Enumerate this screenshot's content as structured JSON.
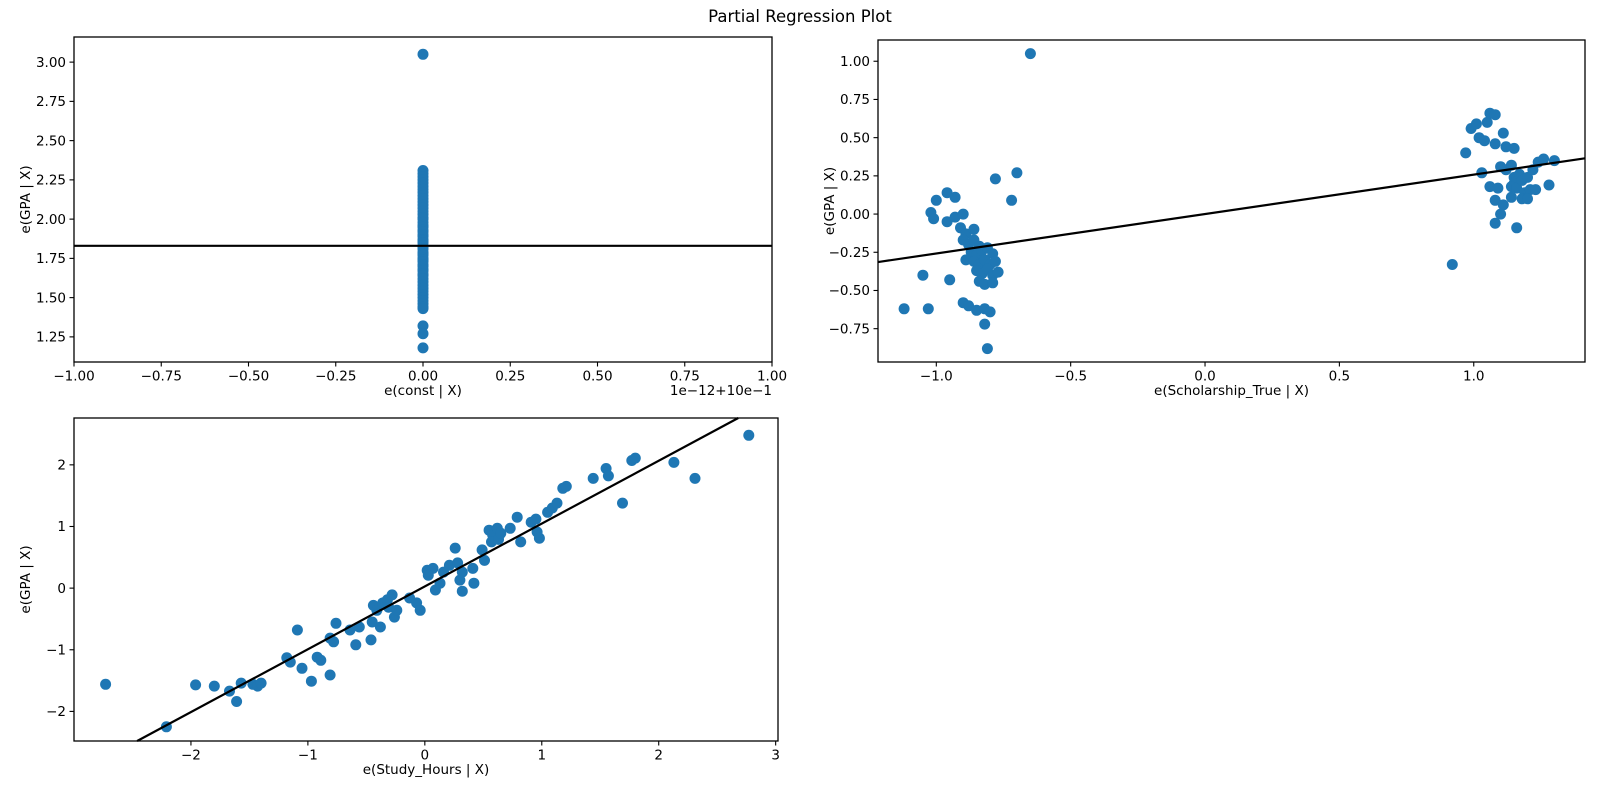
{
  "title": "Partial Regression Plot",
  "colors": {
    "marker": "#1f77b4",
    "fit_line": "#000000",
    "axis": "#000000"
  },
  "chart_data": [
    {
      "type": "scatter",
      "name": "const-partial",
      "xlabel": "e(const | X)",
      "ylabel": "e(GPA | X)",
      "x_axis_offset_text": "1e−12+10e−1",
      "xlim": [
        -1.0,
        1.0
      ],
      "ylim": [
        1.09,
        3.16
      ],
      "xtick_values": [
        -1.0,
        -0.75,
        -0.5,
        -0.25,
        0.0,
        0.25,
        0.5,
        0.75,
        1.0
      ],
      "xtick_labels": [
        "−1.00",
        "−0.75",
        "−0.50",
        "−0.25",
        "0.00",
        "0.25",
        "0.50",
        "0.75",
        "1.00"
      ],
      "ytick_values": [
        1.25,
        1.5,
        1.75,
        2.0,
        2.25,
        2.5,
        2.75,
        3.0
      ],
      "ytick_labels": [
        "1.25",
        "1.50",
        "1.75",
        "2.00",
        "2.25",
        "2.50",
        "2.75",
        "3.00"
      ],
      "fit_line": [
        [
          -1.0,
          1.83
        ],
        [
          1.0,
          1.83
        ]
      ],
      "points": [
        [
          0,
          3.05
        ],
        [
          0,
          2.31
        ],
        [
          0,
          2.29
        ],
        [
          0,
          2.27
        ],
        [
          0,
          2.25
        ],
        [
          0,
          2.23
        ],
        [
          0,
          2.21
        ],
        [
          0,
          2.19
        ],
        [
          0,
          2.17
        ],
        [
          0,
          2.15
        ],
        [
          0,
          2.13
        ],
        [
          0,
          2.11
        ],
        [
          0,
          2.09
        ],
        [
          0,
          2.07
        ],
        [
          0,
          2.05
        ],
        [
          0,
          2.03
        ],
        [
          0,
          2.01
        ],
        [
          0,
          2.0
        ],
        [
          0,
          1.98
        ],
        [
          0,
          1.96
        ],
        [
          0,
          1.95
        ],
        [
          0,
          1.93
        ],
        [
          0,
          1.92
        ],
        [
          0,
          1.9
        ],
        [
          0,
          1.89
        ],
        [
          0,
          1.87
        ],
        [
          0,
          1.86
        ],
        [
          0,
          1.85
        ],
        [
          0,
          1.83
        ],
        [
          0,
          1.82
        ],
        [
          0,
          1.81
        ],
        [
          0,
          1.79
        ],
        [
          0,
          1.78
        ],
        [
          0,
          1.77
        ],
        [
          0,
          1.75
        ],
        [
          0,
          1.74
        ],
        [
          0,
          1.73
        ],
        [
          0,
          1.71
        ],
        [
          0,
          1.7
        ],
        [
          0,
          1.68
        ],
        [
          0,
          1.67
        ],
        [
          0,
          1.65
        ],
        [
          0,
          1.64
        ],
        [
          0,
          1.62
        ],
        [
          0,
          1.6
        ],
        [
          0,
          1.58
        ],
        [
          0,
          1.56
        ],
        [
          0,
          1.54
        ],
        [
          0,
          1.52
        ],
        [
          0,
          1.5
        ],
        [
          0,
          1.48
        ],
        [
          0,
          1.46
        ],
        [
          0,
          1.44
        ],
        [
          0,
          1.43
        ],
        [
          0,
          1.32
        ],
        [
          0,
          1.27
        ],
        [
          0,
          1.18
        ]
      ]
    },
    {
      "type": "scatter",
      "name": "scholarship-partial",
      "xlabel": "e(Scholarship_True | X)",
      "ylabel": "e(GPA | X)",
      "x_axis_offset_text": "",
      "xlim": [
        -1.217,
        1.414
      ],
      "ylim": [
        -0.968,
        1.139
      ],
      "xtick_values": [
        -1.0,
        -0.5,
        0.0,
        0.5,
        1.0
      ],
      "xtick_labels": [
        "−1.0",
        "−0.5",
        "0.0",
        "0.5",
        "1.0"
      ],
      "ytick_values": [
        -0.75,
        -0.5,
        -0.25,
        0.0,
        0.25,
        0.5,
        0.75,
        1.0
      ],
      "ytick_labels": [
        "−0.75",
        "−0.50",
        "−0.25",
        "0.00",
        "0.25",
        "0.50",
        "0.75",
        "1.00"
      ],
      "fit_line": [
        [
          -1.217,
          -0.314
        ],
        [
          1.414,
          0.365
        ]
      ],
      "points": [
        [
          -0.65,
          1.05
        ],
        [
          -0.7,
          0.27
        ],
        [
          -0.78,
          0.23
        ],
        [
          -0.72,
          0.09
        ],
        [
          -1.0,
          0.09
        ],
        [
          -0.96,
          0.14
        ],
        [
          -0.93,
          0.11
        ],
        [
          -1.02,
          0.01
        ],
        [
          -1.01,
          -0.03
        ],
        [
          -0.96,
          -0.05
        ],
        [
          -0.93,
          -0.02
        ],
        [
          -0.9,
          0.0
        ],
        [
          -0.91,
          -0.09
        ],
        [
          -0.89,
          -0.13
        ],
        [
          -0.86,
          -0.1
        ],
        [
          -0.9,
          -0.17
        ],
        [
          -0.88,
          -0.2
        ],
        [
          -0.86,
          -0.17
        ],
        [
          -0.84,
          -0.21
        ],
        [
          -0.87,
          -0.25
        ],
        [
          -0.85,
          -0.27
        ],
        [
          -0.83,
          -0.24
        ],
        [
          -0.81,
          -0.22
        ],
        [
          -0.79,
          -0.26
        ],
        [
          -0.89,
          -0.3
        ],
        [
          -0.86,
          -0.31
        ],
        [
          -0.84,
          -0.33
        ],
        [
          -0.82,
          -0.3
        ],
        [
          -0.8,
          -0.33
        ],
        [
          -0.78,
          -0.31
        ],
        [
          -0.85,
          -0.37
        ],
        [
          -0.83,
          -0.39
        ],
        [
          -0.81,
          -0.36
        ],
        [
          -0.79,
          -0.4
        ],
        [
          -0.77,
          -0.38
        ],
        [
          -1.05,
          -0.4
        ],
        [
          -0.95,
          -0.43
        ],
        [
          -0.84,
          -0.44
        ],
        [
          -0.82,
          -0.46
        ],
        [
          -0.79,
          -0.45
        ],
        [
          -1.12,
          -0.62
        ],
        [
          -1.03,
          -0.62
        ],
        [
          -0.9,
          -0.58
        ],
        [
          -0.88,
          -0.6
        ],
        [
          -0.85,
          -0.63
        ],
        [
          -0.82,
          -0.62
        ],
        [
          -0.8,
          -0.64
        ],
        [
          -0.82,
          -0.72
        ],
        [
          -0.81,
          -0.88
        ],
        [
          0.92,
          -0.33
        ],
        [
          0.97,
          0.4
        ],
        [
          0.99,
          0.56
        ],
        [
          1.01,
          0.59
        ],
        [
          1.05,
          0.6
        ],
        [
          1.06,
          0.66
        ],
        [
          1.08,
          0.65
        ],
        [
          1.02,
          0.5
        ],
        [
          1.04,
          0.48
        ],
        [
          1.08,
          0.46
        ],
        [
          1.11,
          0.53
        ],
        [
          1.12,
          0.44
        ],
        [
          1.15,
          0.43
        ],
        [
          1.03,
          0.27
        ],
        [
          1.06,
          0.18
        ],
        [
          1.09,
          0.17
        ],
        [
          1.1,
          0.31
        ],
        [
          1.12,
          0.29
        ],
        [
          1.14,
          0.32
        ],
        [
          1.15,
          0.24
        ],
        [
          1.15,
          0.2
        ],
        [
          1.16,
          0.23
        ],
        [
          1.17,
          0.26
        ],
        [
          1.14,
          0.18
        ],
        [
          1.16,
          0.17
        ],
        [
          1.18,
          0.22
        ],
        [
          1.2,
          0.24
        ],
        [
          1.19,
          0.14
        ],
        [
          1.21,
          0.16
        ],
        [
          1.23,
          0.16
        ],
        [
          1.08,
          0.09
        ],
        [
          1.11,
          0.06
        ],
        [
          1.14,
          0.11
        ],
        [
          1.18,
          0.1
        ],
        [
          1.2,
          0.1
        ],
        [
          1.1,
          0.0
        ],
        [
          1.08,
          -0.06
        ],
        [
          1.16,
          -0.09
        ],
        [
          1.22,
          0.29
        ],
        [
          1.24,
          0.34
        ],
        [
          1.26,
          0.36
        ],
        [
          1.3,
          0.35
        ],
        [
          1.28,
          0.19
        ]
      ]
    },
    {
      "type": "scatter",
      "name": "study-hours-partial",
      "xlabel": "e(Study_Hours | X)",
      "ylabel": "e(GPA | X)",
      "x_axis_offset_text": "",
      "xlim": [
        -3.0,
        3.02
      ],
      "ylim": [
        -2.48,
        2.76
      ],
      "xtick_values": [
        -2,
        -1,
        0,
        1,
        2,
        3
      ],
      "xtick_labels": [
        "−2",
        "−1",
        "0",
        "1",
        "2",
        "3"
      ],
      "ytick_values": [
        -2,
        -1,
        0,
        1,
        2
      ],
      "ytick_labels": [
        "−2",
        "−1",
        "0",
        "1",
        "2"
      ],
      "fit_line": [
        [
          -2.46,
          -2.48
        ],
        [
          2.68,
          2.76
        ]
      ],
      "points": [
        [
          -2.73,
          -1.56
        ],
        [
          -2.21,
          -2.25
        ],
        [
          -1.96,
          -1.57
        ],
        [
          -1.8,
          -1.59
        ],
        [
          -1.67,
          -1.67
        ],
        [
          -1.61,
          -1.84
        ],
        [
          -1.57,
          -1.54
        ],
        [
          -1.47,
          -1.56
        ],
        [
          -1.43,
          -1.59
        ],
        [
          -1.4,
          -1.54
        ],
        [
          -1.18,
          -1.13
        ],
        [
          -1.15,
          -1.2
        ],
        [
          -1.09,
          -0.68
        ],
        [
          -1.05,
          -1.3
        ],
        [
          -0.97,
          -1.51
        ],
        [
          -0.92,
          -1.12
        ],
        [
          -0.89,
          -1.17
        ],
        [
          -0.81,
          -1.41
        ],
        [
          -0.76,
          -0.57
        ],
        [
          -0.78,
          -0.87
        ],
        [
          -0.81,
          -0.81
        ],
        [
          -0.64,
          -0.68
        ],
        [
          -0.59,
          -0.92
        ],
        [
          -0.56,
          -0.63
        ],
        [
          -0.46,
          -0.84
        ],
        [
          -0.45,
          -0.55
        ],
        [
          -0.44,
          -0.28
        ],
        [
          -0.41,
          -0.36
        ],
        [
          -0.38,
          -0.63
        ],
        [
          -0.36,
          -0.24
        ],
        [
          -0.32,
          -0.19
        ],
        [
          -0.28,
          -0.11
        ],
        [
          -0.31,
          -0.31
        ],
        [
          -0.26,
          -0.47
        ],
        [
          -0.24,
          -0.36
        ],
        [
          -0.13,
          -0.16
        ],
        [
          -0.07,
          -0.24
        ],
        [
          -0.04,
          -0.36
        ],
        [
          0.02,
          0.29
        ],
        [
          0.07,
          0.32
        ],
        [
          0.03,
          0.21
        ],
        [
          0.09,
          -0.03
        ],
        [
          0.13,
          0.08
        ],
        [
          0.16,
          0.26
        ],
        [
          0.21,
          0.37
        ],
        [
          0.26,
          0.65
        ],
        [
          0.28,
          0.41
        ],
        [
          0.3,
          0.13
        ],
        [
          0.32,
          -0.05
        ],
        [
          0.32,
          0.26
        ],
        [
          0.41,
          0.32
        ],
        [
          0.42,
          0.08
        ],
        [
          0.49,
          0.62
        ],
        [
          0.51,
          0.45
        ],
        [
          0.55,
          0.94
        ],
        [
          0.58,
          0.86
        ],
        [
          0.62,
          0.97
        ],
        [
          0.57,
          0.75
        ],
        [
          0.63,
          0.79
        ],
        [
          0.65,
          0.89
        ],
        [
          0.73,
          0.97
        ],
        [
          0.79,
          1.15
        ],
        [
          0.82,
          0.75
        ],
        [
          0.91,
          1.07
        ],
        [
          0.95,
          1.12
        ],
        [
          0.96,
          0.91
        ],
        [
          0.98,
          0.81
        ],
        [
          1.05,
          1.23
        ],
        [
          1.09,
          1.3
        ],
        [
          1.13,
          1.38
        ],
        [
          1.18,
          1.62
        ],
        [
          1.21,
          1.65
        ],
        [
          1.44,
          1.78
        ],
        [
          1.55,
          1.94
        ],
        [
          1.57,
          1.82
        ],
        [
          1.69,
          1.38
        ],
        [
          1.77,
          2.07
        ],
        [
          1.8,
          2.11
        ],
        [
          2.13,
          2.04
        ],
        [
          2.31,
          1.78
        ],
        [
          2.77,
          2.48
        ]
      ]
    }
  ]
}
